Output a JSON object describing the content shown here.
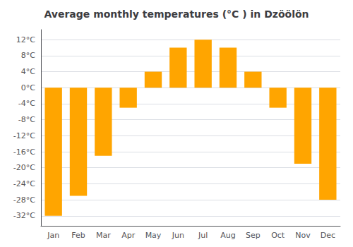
{
  "chart_data": {
    "type": "bar",
    "title": "Average monthly temperatures (°C ) in Dzöölön",
    "categories": [
      "Jan",
      "Feb",
      "Mar",
      "Apr",
      "May",
      "Jun",
      "Jul",
      "Aug",
      "Sep",
      "Oct",
      "Nov",
      "Dec"
    ],
    "values": [
      -32,
      -27,
      -17,
      -5,
      4,
      10,
      12,
      10,
      4,
      -5,
      -19,
      -28
    ],
    "color": "#FFA500",
    "ylim": [
      -34.5,
      14.5
    ],
    "yticks": [
      {
        "value": -32,
        "label": "-32°C"
      },
      {
        "value": -28,
        "label": "-28°C"
      },
      {
        "value": -24,
        "label": "-24°C"
      },
      {
        "value": -20,
        "label": "-20°C"
      },
      {
        "value": -16,
        "label": "-16°C"
      },
      {
        "value": -12,
        "label": "-12°C"
      },
      {
        "value": -8,
        "label": "-8°C"
      },
      {
        "value": -4,
        "label": "-4°C"
      },
      {
        "value": 0,
        "label": "0°C"
      },
      {
        "value": 4,
        "label": "4°C"
      },
      {
        "value": 8,
        "label": "8°C"
      },
      {
        "value": 12,
        "label": "12°C"
      }
    ],
    "grid": true
  }
}
